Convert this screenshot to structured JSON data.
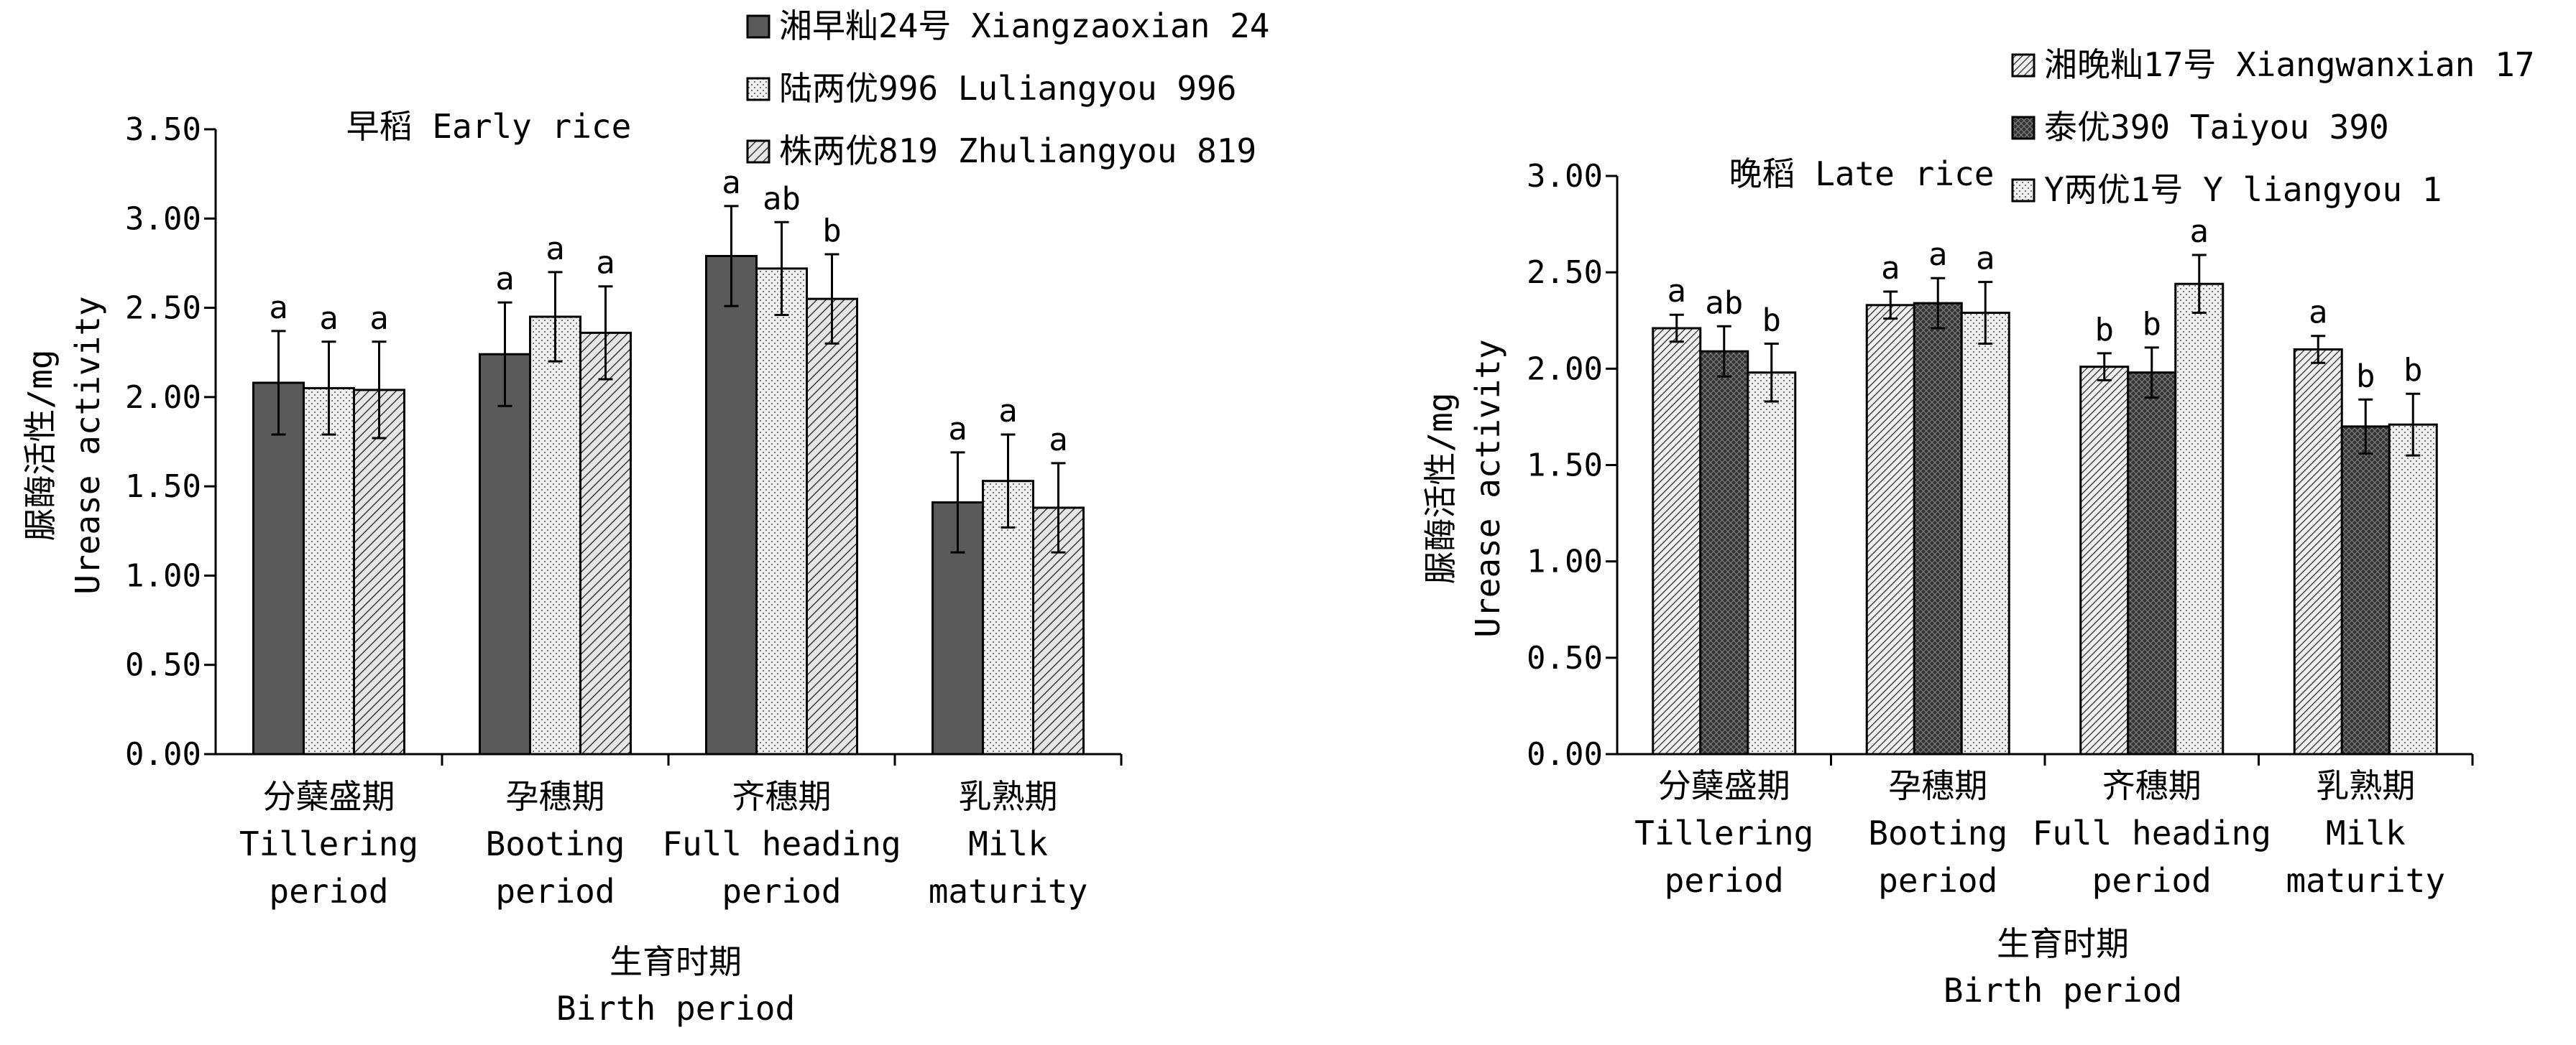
{
  "figure": {
    "x_title_cn": "生育时期",
    "x_title_en": "Birth period"
  },
  "chart_data": [
    {
      "type": "bar",
      "title": "早稻 Early rice",
      "ylabel_cn": "脲酶活性/mg",
      "ylabel_en": "Urease activity",
      "ylim": [
        0,
        3.5
      ],
      "yticks": [
        "0.00",
        "0.50",
        "1.00",
        "1.50",
        "2.00",
        "2.50",
        "3.00",
        "3.50"
      ],
      "categories": [
        {
          "cn": "分蘖盛期",
          "en1": "Tillering",
          "en2": "period"
        },
        {
          "cn": "孕穗期",
          "en1": "Booting",
          "en2": "period"
        },
        {
          "cn": "齐穗期",
          "en1": "Full heading",
          "en2": "period"
        },
        {
          "cn": "乳熟期",
          "en1": "Milk",
          "en2": "maturity"
        }
      ],
      "series": [
        {
          "name": "湘早籼24号 Xiangzaoxian 24",
          "pattern": "dark-gray",
          "values": [
            2.08,
            2.24,
            2.79,
            1.41
          ],
          "errors": [
            0.29,
            0.29,
            0.28,
            0.28
          ],
          "labels": [
            "a",
            "a",
            "a",
            "a"
          ]
        },
        {
          "name": "陆两优996 Luliangyou 996",
          "pattern": "light-dots",
          "values": [
            2.05,
            2.45,
            2.72,
            1.53
          ],
          "errors": [
            0.26,
            0.25,
            0.26,
            0.26
          ],
          "labels": [
            "a",
            "a",
            "ab",
            "a"
          ]
        },
        {
          "name": "株两优819 Zhuliangyou 819",
          "pattern": "diagonal-fine",
          "values": [
            2.04,
            2.36,
            2.55,
            1.38
          ],
          "errors": [
            0.27,
            0.26,
            0.25,
            0.25
          ],
          "labels": [
            "a",
            "a",
            "b",
            "a"
          ]
        }
      ],
      "legend": "top-right"
    },
    {
      "type": "bar",
      "title": "晚稻 Late rice",
      "ylabel_cn": "脲酶活性/mg",
      "ylabel_en": "Urease activity",
      "ylim": [
        0,
        3.0
      ],
      "yticks": [
        "0.00",
        "0.50",
        "1.00",
        "1.50",
        "2.00",
        "2.50",
        "3.00"
      ],
      "categories": [
        {
          "cn": "分蘖盛期",
          "en1": "Tillering",
          "en2": "period"
        },
        {
          "cn": "孕穗期",
          "en1": "Booting",
          "en2": "period"
        },
        {
          "cn": "齐穗期",
          "en1": "Full heading",
          "en2": "period"
        },
        {
          "cn": "乳熟期",
          "en1": "Milk",
          "en2": "maturity"
        }
      ],
      "series": [
        {
          "name": "湘晚籼17号 Xiangwanxian 17",
          "pattern": "diagonal-dense",
          "values": [
            2.21,
            2.33,
            2.01,
            2.1
          ],
          "errors": [
            0.07,
            0.07,
            0.07,
            0.07
          ],
          "labels": [
            "a",
            "a",
            "b",
            "a"
          ]
        },
        {
          "name": "泰优390 Taiyou 390",
          "pattern": "dark-crosshatch",
          "values": [
            2.09,
            2.34,
            1.98,
            1.7
          ],
          "errors": [
            0.13,
            0.13,
            0.13,
            0.14
          ],
          "labels": [
            "ab",
            "a",
            "b",
            "b"
          ]
        },
        {
          "name": "Y两优1号 Y liangyou 1",
          "pattern": "light-dots",
          "values": [
            1.98,
            2.29,
            2.44,
            1.71
          ],
          "errors": [
            0.15,
            0.16,
            0.15,
            0.16
          ],
          "labels": [
            "b",
            "a",
            "a",
            "b"
          ]
        }
      ],
      "legend": "top-right"
    }
  ]
}
